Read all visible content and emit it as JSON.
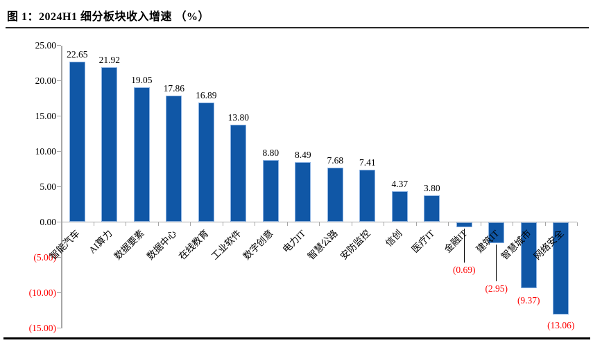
{
  "header": {
    "title": "图 1：2024H1 细分板块收入增速 （%）"
  },
  "chart_data": {
    "type": "bar",
    "title": "2024H1 细分板块收入增速 （%）",
    "categories": [
      "智能汽车",
      "AI算力",
      "数据要素",
      "数据中心",
      "在线教育",
      "工业软件",
      "数字创意",
      "电力IT",
      "智慧公路",
      "安防监控",
      "信创",
      "医疗IT",
      "金融IT",
      "建筑IT",
      "智慧城市",
      "网络安全"
    ],
    "values": [
      22.65,
      21.92,
      19.05,
      17.86,
      16.89,
      13.8,
      8.8,
      8.49,
      7.68,
      7.41,
      4.37,
      3.8,
      -0.69,
      -2.95,
      -9.37,
      -13.06
    ],
    "data_labels": [
      "22.65",
      "21.92",
      "19.05",
      "17.86",
      "16.89",
      "13.80",
      "8.80",
      "8.49",
      "7.68",
      "7.41",
      "4.37",
      "3.80",
      "(0.69)",
      "(2.95)",
      "(9.37)",
      "(13.06)"
    ],
    "xlabel": "",
    "ylabel": "",
    "ylim": [
      -15,
      25
    ],
    "y_tick_step": 5,
    "y_ticks": [
      {
        "label": "25.00",
        "value": 25
      },
      {
        "label": "20.00",
        "value": 20
      },
      {
        "label": "15.00",
        "value": 15
      },
      {
        "label": "10.00",
        "value": 10
      },
      {
        "label": "5.00",
        "value": 5
      },
      {
        "label": "0.00",
        "value": 0
      },
      {
        "label": "(5.00)",
        "value": -5
      },
      {
        "label": "(10.00)",
        "value": -10
      },
      {
        "label": "(15.00)",
        "value": -15
      }
    ],
    "grid": false,
    "legend": "none",
    "colors": {
      "bar_fill": "#1057A6",
      "bar_border": "#8EB4E3",
      "positive_label": "#000000",
      "negative_label": "#FF0000",
      "axis_line": "#A6A6A6",
      "leader_line": "#000000"
    }
  }
}
